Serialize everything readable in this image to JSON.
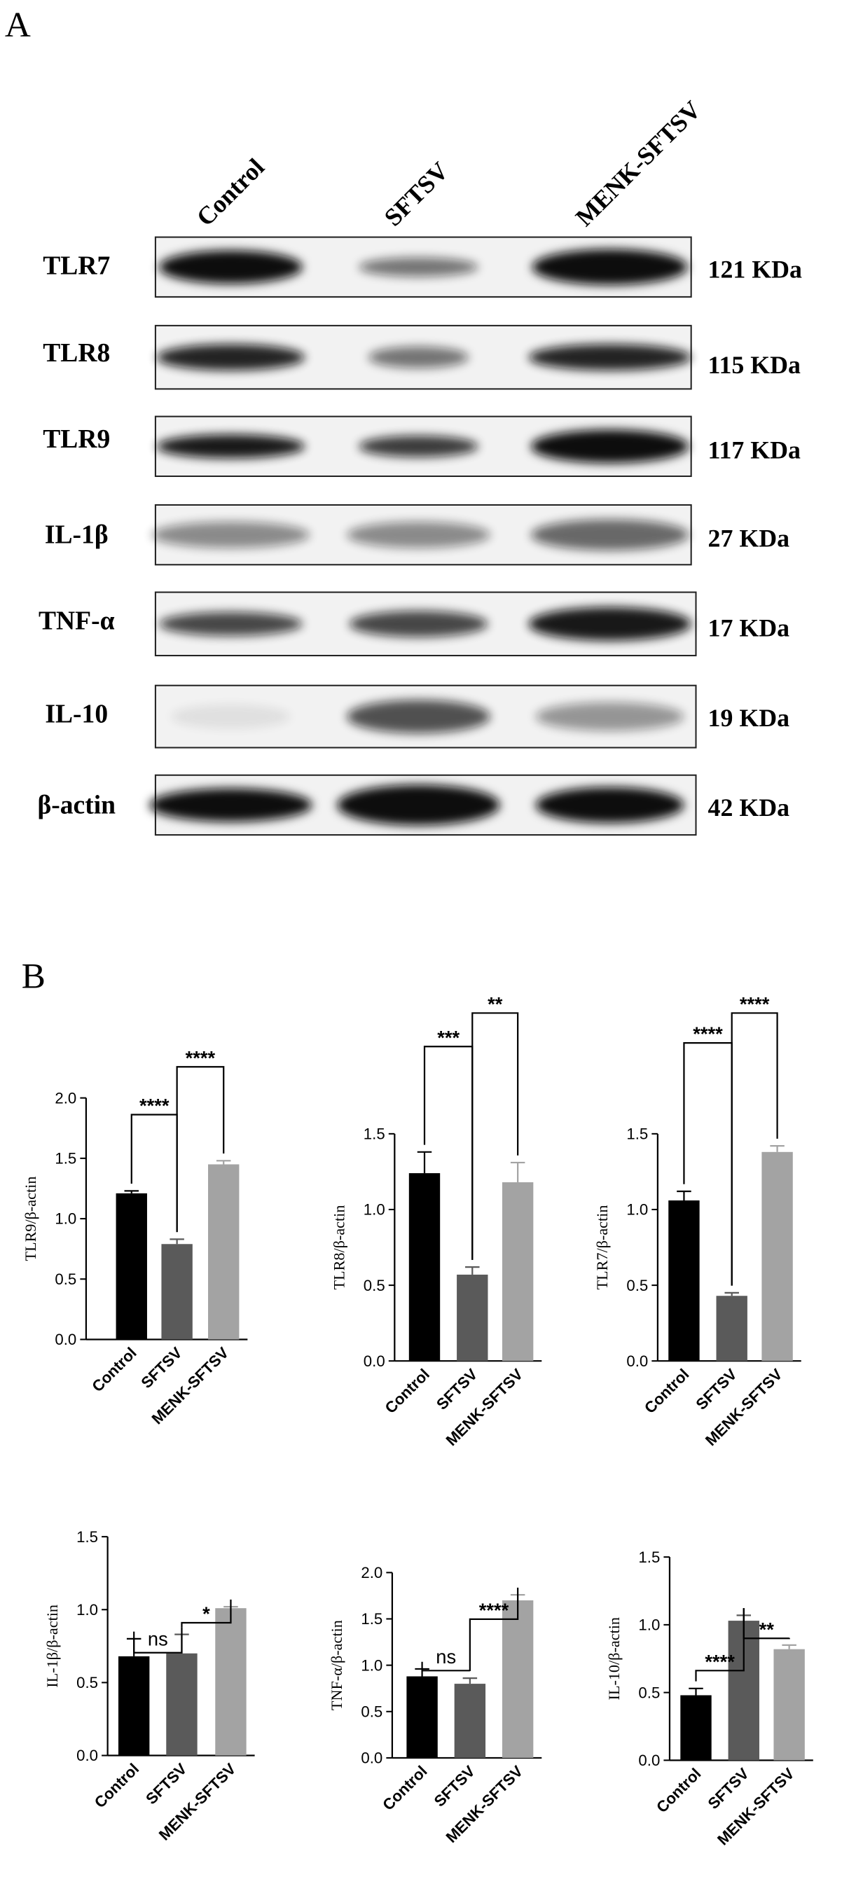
{
  "panel_a": {
    "label": "A",
    "lanes": [
      "Control",
      "SFTSV",
      "MENK-SFTSV"
    ],
    "rows": [
      {
        "name": "TLR7",
        "size": "121 KDa"
      },
      {
        "name": "TLR8",
        "size": "115 KDa"
      },
      {
        "name": "TLR9",
        "size": "117 KDa"
      },
      {
        "name": "IL-1β",
        "size": "27 KDa"
      },
      {
        "name": "TNF-α",
        "size": "17 KDa"
      },
      {
        "name": "IL-10",
        "size": "19 KDa"
      },
      {
        "name": "β-actin",
        "size": "42 KDa"
      }
    ]
  },
  "panel_b": {
    "label": "B"
  },
  "chart_data": [
    {
      "type": "bar",
      "ylabel": "TLR9/β-actin",
      "categories": [
        "Control",
        "SFTSV",
        "MENK-SFTSV"
      ],
      "values": [
        1.21,
        0.79,
        1.45
      ],
      "errors": [
        0.02,
        0.04,
        0.03
      ],
      "colors": [
        "#000000",
        "#5a5a5a",
        "#a3a3a3"
      ],
      "ylim": [
        0,
        2
      ],
      "yticks": [
        {
          "value": 0,
          "label": "0.0"
        },
        0.5,
        {
          "value": 1,
          "label": "1.0"
        },
        1.5,
        {
          "value": 2,
          "label": "2.0"
        }
      ],
      "annotations": [
        {
          "label": "****",
          "between": [
            "Control",
            "SFTSV"
          ]
        },
        {
          "label": "****",
          "between": [
            "SFTSV",
            "MENK-SFTSV"
          ]
        }
      ]
    },
    {
      "type": "bar",
      "ylabel": "TLR8/β-actin",
      "categories": [
        "Control",
        "SFTSV",
        "MENK-SFTSV"
      ],
      "values": [
        1.24,
        0.57,
        1.18
      ],
      "errors": [
        0.14,
        0.05,
        0.13
      ],
      "colors": [
        "#000000",
        "#5a5a5a",
        "#a3a3a3"
      ],
      "ylim": [
        0,
        1.5
      ],
      "yticks": [
        {
          "value": 0,
          "label": "0.0"
        },
        0.5,
        {
          "value": 1,
          "label": "1.0"
        },
        1.5
      ],
      "annotations": [
        {
          "label": "***",
          "between": [
            "Control",
            "SFTSV"
          ]
        },
        {
          "label": "**",
          "between": [
            "SFTSV",
            "MENK-SFTSV"
          ]
        }
      ]
    },
    {
      "type": "bar",
      "ylabel": "TLR7/β-actin",
      "categories": [
        "Control",
        "SFTSV",
        "MENK-SFTSV"
      ],
      "values": [
        1.06,
        0.43,
        1.38
      ],
      "errors": [
        0.06,
        0.02,
        0.04
      ],
      "colors": [
        "#000000",
        "#5a5a5a",
        "#a3a3a3"
      ],
      "ylim": [
        0,
        1.5
      ],
      "yticks": [
        {
          "value": 0,
          "label": "0.0"
        },
        0.5,
        {
          "value": 1,
          "label": "1.0"
        },
        1.5
      ],
      "annotations": [
        {
          "label": "****",
          "between": [
            "Control",
            "SFTSV"
          ]
        },
        {
          "label": "****",
          "between": [
            "SFTSV",
            "MENK-SFTSV"
          ]
        }
      ]
    },
    {
      "type": "bar",
      "ylabel": "IL-1β/β-actin",
      "categories": [
        "Control",
        "SFTSV",
        "MENK-SFTSV"
      ],
      "values": [
        0.68,
        0.7,
        1.01
      ],
      "errors": [
        0.12,
        0.13,
        0.01
      ],
      "colors": [
        "#000000",
        "#5a5a5a",
        "#a3a3a3"
      ],
      "ylim": [
        0,
        1.5
      ],
      "yticks": [
        {
          "value": 0,
          "label": "0.0"
        },
        0.5,
        {
          "value": 1,
          "label": "1.0"
        },
        1.5
      ],
      "annotations": [
        {
          "label": "ns",
          "between": [
            "Control",
            "SFTSV"
          ]
        },
        {
          "label": "*",
          "between": [
            "SFTSV",
            "MENK-SFTSV"
          ]
        }
      ]
    },
    {
      "type": "bar",
      "ylabel": "TNF-α/β-actin",
      "categories": [
        "Control",
        "SFTSV",
        "MENK-SFTSV"
      ],
      "values": [
        0.88,
        0.8,
        1.7
      ],
      "errors": [
        0.08,
        0.06,
        0.06
      ],
      "colors": [
        "#000000",
        "#5a5a5a",
        "#a3a3a3"
      ],
      "ylim": [
        0,
        2
      ],
      "yticks": [
        {
          "value": 0,
          "label": "0.0"
        },
        0.5,
        {
          "value": 1,
          "label": "1.0"
        },
        1.5,
        {
          "value": 2,
          "label": "2.0"
        }
      ],
      "annotations": [
        {
          "label": "ns",
          "between": [
            "Control",
            "SFTSV"
          ]
        },
        {
          "label": "****",
          "between": [
            "SFTSV",
            "MENK-SFTSV"
          ]
        }
      ]
    },
    {
      "type": "bar",
      "ylabel": "IL-10/β-actin",
      "categories": [
        "Control",
        "SFTSV",
        "MENK-SFTSV"
      ],
      "values": [
        0.48,
        1.03,
        0.82
      ],
      "errors": [
        0.05,
        0.04,
        0.03
      ],
      "colors": [
        "#000000",
        "#5a5a5a",
        "#a3a3a3"
      ],
      "ylim": [
        0,
        1.5
      ],
      "yticks": [
        {
          "value": 0,
          "label": "0.0"
        },
        0.5,
        {
          "value": 1,
          "label": "1.0"
        },
        1.5
      ],
      "annotations": [
        {
          "label": "****",
          "between": [
            "Control",
            "SFTSV"
          ]
        },
        {
          "label": "**",
          "between": [
            "SFTSV",
            "MENK-SFTSV"
          ]
        }
      ]
    }
  ]
}
